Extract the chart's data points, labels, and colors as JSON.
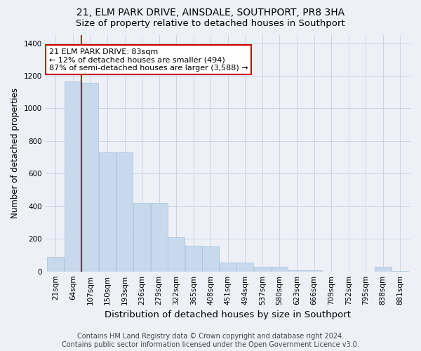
{
  "title_line1": "21, ELM PARK DRIVE, AINSDALE, SOUTHPORT, PR8 3HA",
  "title_line2": "Size of property relative to detached houses in Southport",
  "xlabel": "Distribution of detached houses by size in Southport",
  "ylabel": "Number of detached properties",
  "bar_color": "#c8d9ee",
  "bar_edge_color": "#a8c0d8",
  "grid_color": "#ccd5e3",
  "bg_color": "#edf1f7",
  "categories": [
    "21sqm",
    "64sqm",
    "107sqm",
    "150sqm",
    "193sqm",
    "236sqm",
    "279sqm",
    "322sqm",
    "365sqm",
    "408sqm",
    "451sqm",
    "494sqm",
    "537sqm",
    "580sqm",
    "623sqm",
    "666sqm",
    "709sqm",
    "752sqm",
    "795sqm",
    "838sqm",
    "881sqm"
  ],
  "values": [
    90,
    1165,
    1155,
    730,
    730,
    420,
    420,
    210,
    160,
    155,
    55,
    55,
    30,
    30,
    8,
    8,
    0,
    0,
    0,
    28,
    5
  ],
  "vline_x": 1.5,
  "annotation_text_line1": "21 ELM PARK DRIVE: 83sqm",
  "annotation_text_line2": "← 12% of detached houses are smaller (494)",
  "annotation_text_line3": "87% of semi-detached houses are larger (3,588) →",
  "annotation_box_color": "#ffffff",
  "annotation_box_edge_color": "#cc0000",
  "vline_color": "#cc0000",
  "ylim": [
    0,
    1450
  ],
  "yticks": [
    0,
    200,
    400,
    600,
    800,
    1000,
    1200,
    1400
  ],
  "footer_line1": "Contains HM Land Registry data © Crown copyright and database right 2024.",
  "footer_line2": "Contains public sector information licensed under the Open Government Licence v3.0.",
  "title_fontsize": 10,
  "subtitle_fontsize": 9.5,
  "ylabel_fontsize": 8.5,
  "xlabel_fontsize": 9.5,
  "tick_fontsize": 7.5,
  "annotation_fontsize": 8,
  "footer_fontsize": 7
}
